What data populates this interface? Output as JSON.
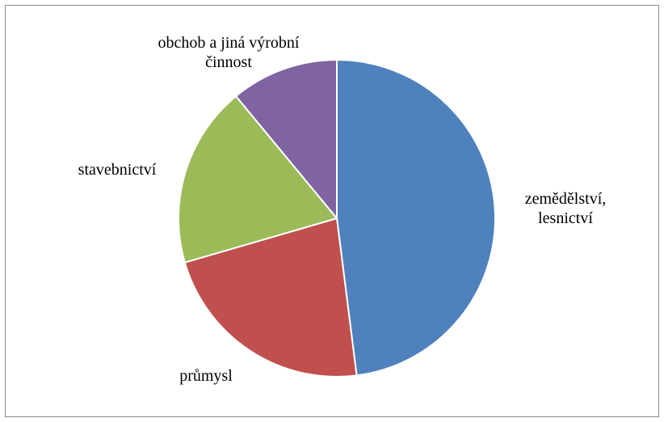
{
  "chart_data": {
    "type": "pie",
    "categories": [
      "zemědělství, lesnictví",
      "průmysl",
      "stavebnictví",
      "obchob a jiná výrobní činnost"
    ],
    "values": [
      48,
      22.5,
      18.5,
      11
    ],
    "colors": [
      "#4f81bd",
      "#c0504d",
      "#9bbb59",
      "#8064a2"
    ]
  }
}
